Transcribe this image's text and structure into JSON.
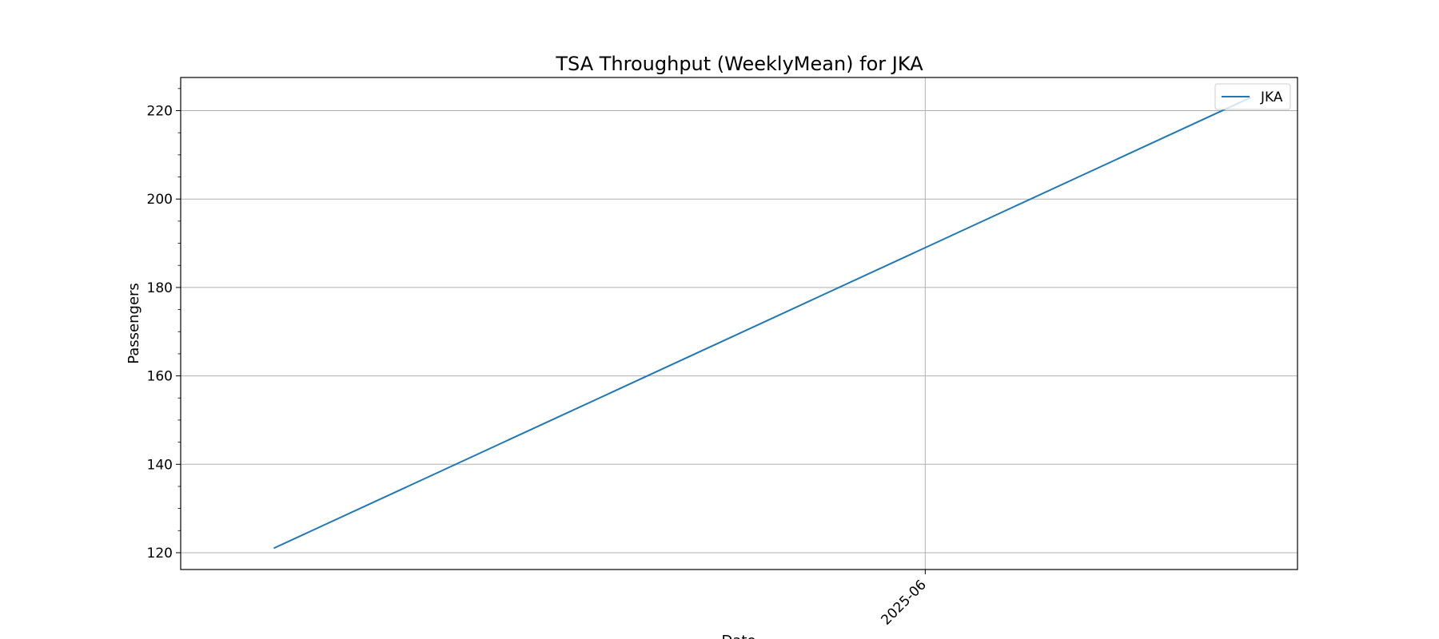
{
  "chart_data": {
    "type": "line",
    "title": "TSA Throughput (WeeklyMean) for JKA",
    "xlabel": "Date",
    "ylabel": "Passengers",
    "x": [
      "2025-05-18",
      "2025-06-08"
    ],
    "series": [
      {
        "name": "JKA",
        "values": [
          121,
          223
        ],
        "color": "#1f77b4"
      }
    ],
    "ylim": [
      116.2,
      227.5
    ],
    "xlim": [
      "2025-05-16",
      "2025-06-09"
    ],
    "yticks": [
      120,
      140,
      160,
      180,
      200,
      220
    ],
    "xticks": [
      {
        "date": "2025-06-01",
        "label": "2025-06"
      }
    ],
    "grid": true,
    "legend": {
      "position": "top-right"
    }
  }
}
